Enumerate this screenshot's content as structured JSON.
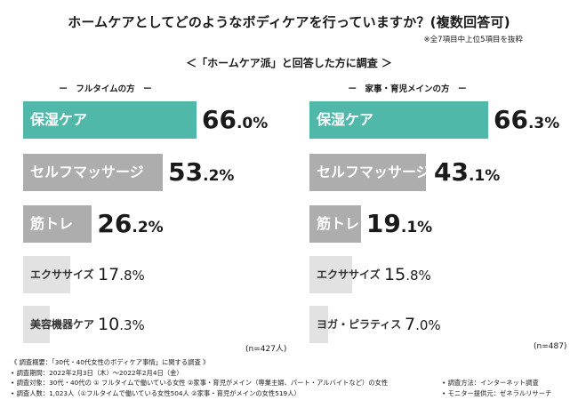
{
  "title": "ホームケアとしてどのようなボディケアを行っていますか？(複数回答可)",
  "title_note": "※全7項目中上位5項目を抜粋",
  "survey_title": "＜「ホームケア派」と回答した方に調査 ＞",
  "chart_data": [
    {
      "type": "bar",
      "orientation": "horizontal",
      "title": "ー　フルタイムの方　ー",
      "categories": [
        "保湿ケア",
        "セルフマッサージ",
        "筋トレ",
        "エクササイズ",
        "美容機器ケア"
      ],
      "values": [
        66.0,
        53.2,
        26.2,
        17.8,
        10.3
      ],
      "value_labels": [
        {
          "int": "66",
          "dec": ".0%"
        },
        {
          "int": "53",
          "dec": ".2%"
        },
        {
          "int": "26",
          "dec": ".2%"
        },
        {
          "int": "17",
          "dec": ".8%"
        },
        {
          "int": "10",
          "dec": ".3%"
        }
      ],
      "unit": "%",
      "n": "(n=427人)",
      "colors": [
        "#4fb8a8",
        "#adadad",
        "#adadad",
        "#e2e2e2",
        "#e2e2e2"
      ]
    },
    {
      "type": "bar",
      "orientation": "horizontal",
      "title": "ー　家事・育児メインの方　ー",
      "categories": [
        "保湿ケア",
        "セルフマッサージ",
        "筋トレ",
        "エクササイズ",
        "ヨガ・ピラティス"
      ],
      "values": [
        66.3,
        43.1,
        19.1,
        15.8,
        7.0
      ],
      "value_labels": [
        {
          "int": "66",
          "dec": ".3%"
        },
        {
          "int": "43",
          "dec": ".1%"
        },
        {
          "int": "19",
          "dec": ".1%"
        },
        {
          "int": "15",
          "dec": ".8%"
        },
        {
          "int": "7",
          "dec": ".0%"
        }
      ],
      "unit": "%",
      "n": "(n=487)",
      "colors": [
        "#4fb8a8",
        "#adadad",
        "#adadad",
        "#e2e2e2",
        "#e2e2e2"
      ]
    }
  ],
  "footer": {
    "overview": "《 調査概要：「30代・40代女性のボディケア事情」に関する調査 》",
    "period": "• 調査期間：2022年2月3日（木）～2022年2月4日（金）",
    "target": "• 調査対象：30代・40代の ① フルタイムで働いている女性 ②家事・育児がメイン（専業主婦、パート・アルバイトなど）の女性",
    "count": "• 調査人数：1,023人（①フルタイムで働いている女性504人 ②家事・育児がメインの女性519人）",
    "method": "• 調査方法：インターネット調査",
    "provider": "• モニター提供元：ゼネラルリサーチ"
  }
}
